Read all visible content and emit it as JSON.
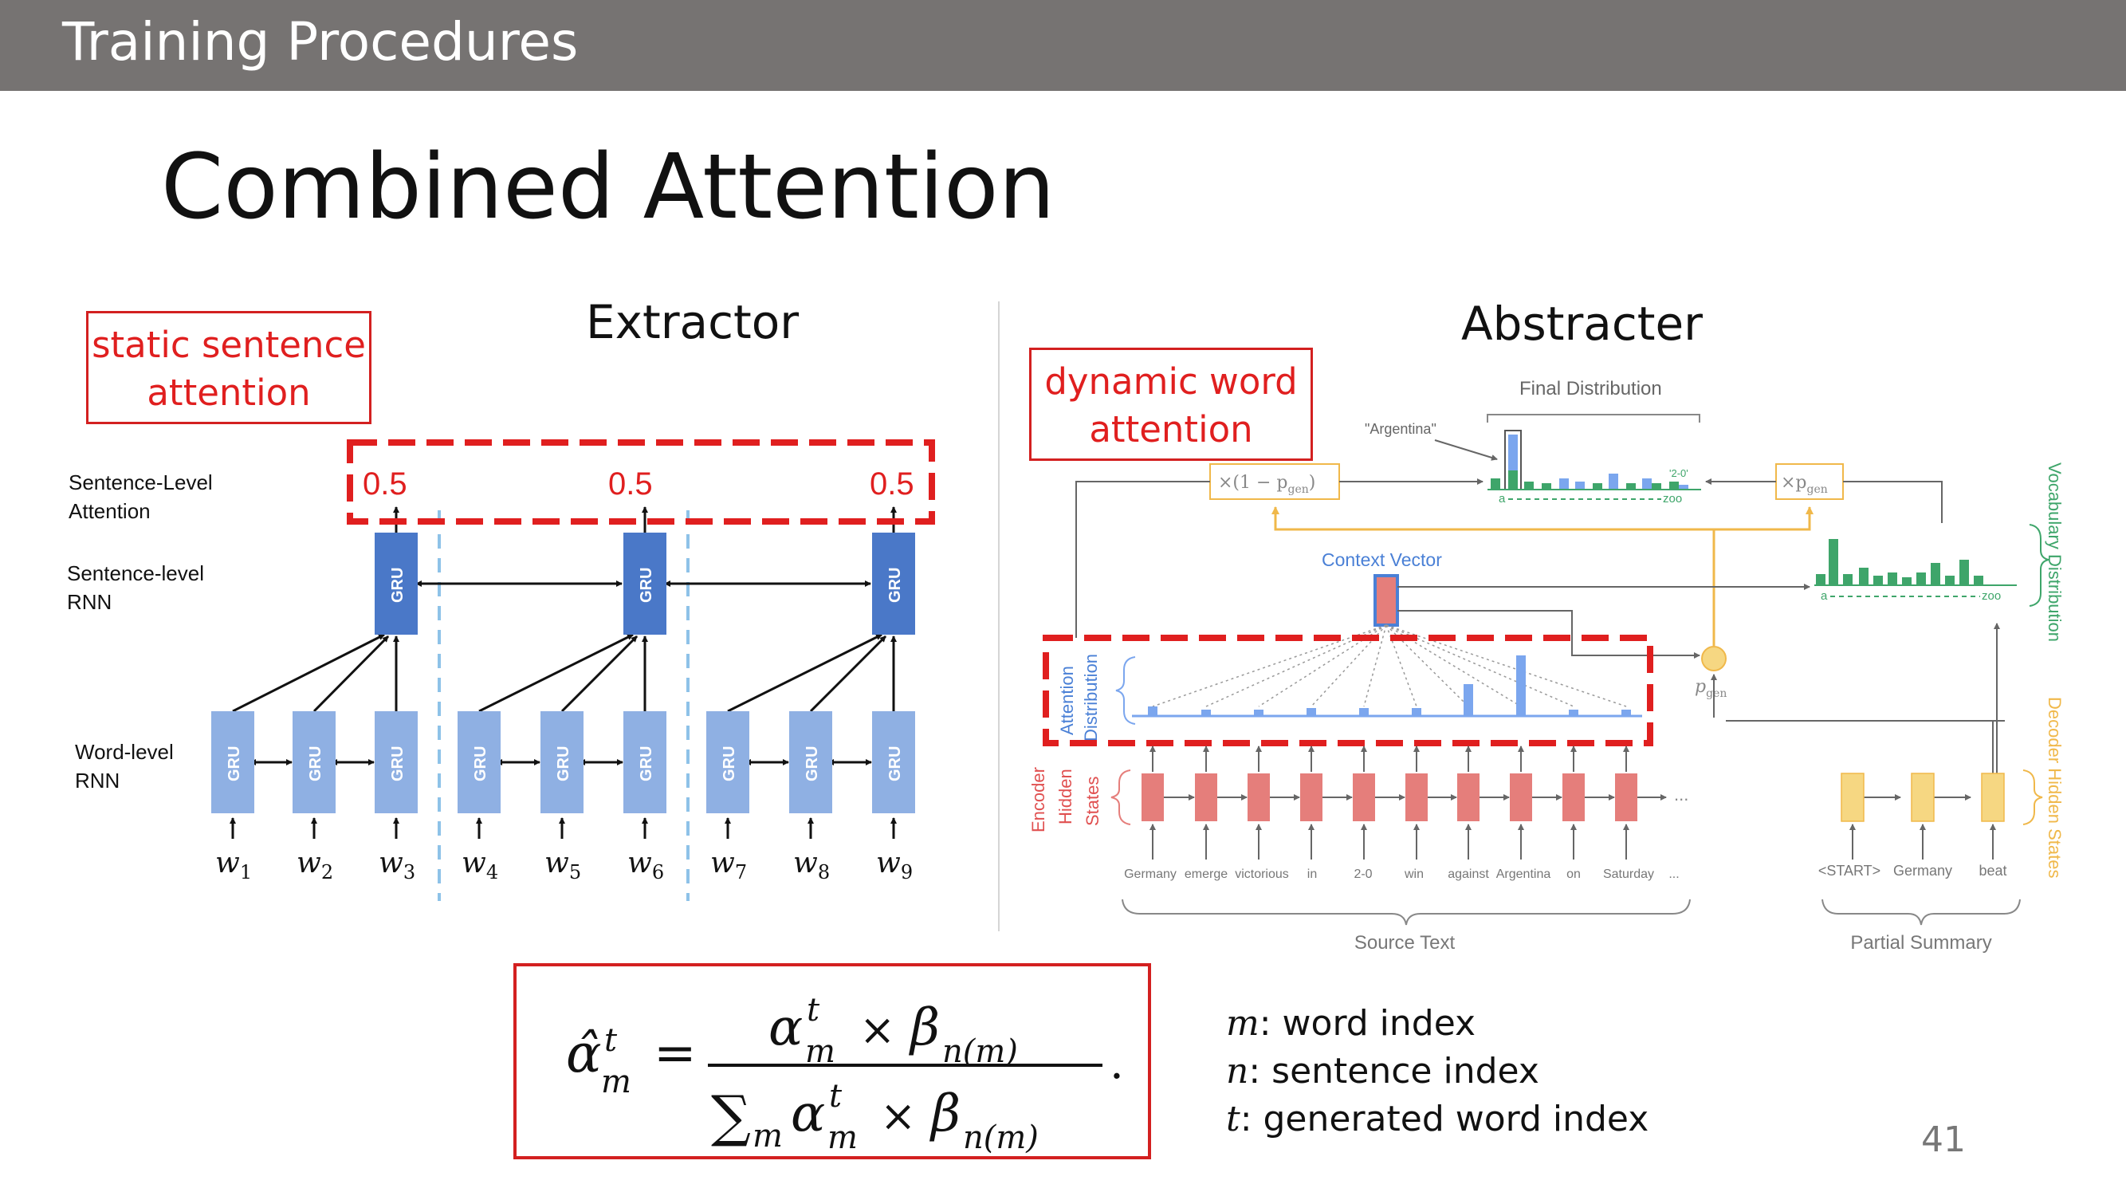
{
  "header": {
    "title": "Training Procedures"
  },
  "slide": {
    "title": "Combined Attention",
    "page_number": "41"
  },
  "extractor": {
    "title": "Extractor",
    "box_label_line1": "static sentence",
    "box_label_line2": "attention",
    "row_labels": {
      "sent_att_1": "Sentence-Level",
      "sent_att_2": "Attention",
      "sent_rnn_1": "Sentence-level",
      "sent_rnn_2": "RNN",
      "word_rnn_1": "Word-level",
      "word_rnn_2": "RNN"
    },
    "attention_values": [
      "0.5",
      "0.5",
      "0.5"
    ],
    "gru_label": "GRU",
    "word_subscripts": [
      "1",
      "2",
      "3",
      "4",
      "5",
      "6",
      "7",
      "8",
      "9"
    ],
    "word_symbol": "w"
  },
  "abstracter": {
    "title": "Abstracter",
    "box_label_line1": "dynamic word",
    "box_label_line2": "attention",
    "final_distribution": "Final Distribution",
    "argentina": "\"Argentina\"",
    "two_zero": "'2-0'",
    "axis_a": "a",
    "axis_zoo": "zoo",
    "one_minus_pgen": "×(1 − p",
    "times_pgen": "×p",
    "gen_sub": "gen",
    "context_vector": "Context Vector",
    "attention_distribution_1": "Attention",
    "attention_distribution_2": "Distribution",
    "encoder_1": "Encoder",
    "encoder_2": "Hidden",
    "encoder_3": "States",
    "vocabulary_distribution": "Vocabulary Distribution",
    "decoder_hidden_states": "Decoder Hidden States",
    "pgen": "p",
    "source_words": [
      "Germany",
      "emerge",
      "victorious",
      "in",
      "2-0",
      "win",
      "against",
      "Argentina",
      "on",
      "Saturday"
    ],
    "ellipsis": "...",
    "decoder_words": [
      "<START>",
      "Germany",
      "beat"
    ],
    "source_text": "Source Text",
    "partial_summary": "Partial Summary",
    "colors": {
      "encoder": "#e57e7b",
      "attention": "#7ba6ee",
      "vocab": "#3ea56a",
      "decoder": "#f6d782",
      "context": "#4a80d6"
    }
  },
  "formula": {
    "lhs": "α̂",
    "sup_t": "t",
    "sub_m": "m",
    "num_alpha": "α",
    "times": "×",
    "beta": "β",
    "sub_nm": "n(m)",
    "sum": "∑",
    "period": "."
  },
  "legend": {
    "m_symbol": "m",
    "m_text": ": word index",
    "n_symbol": "n",
    "n_text": ": sentence index",
    "t_symbol": "t",
    "t_text": ": generated word index"
  },
  "colors": {
    "header_bg": "#767372",
    "accent_red": "#d32020",
    "gru_dark": "#4a78c8",
    "gru_light": "#8fb0e3"
  }
}
